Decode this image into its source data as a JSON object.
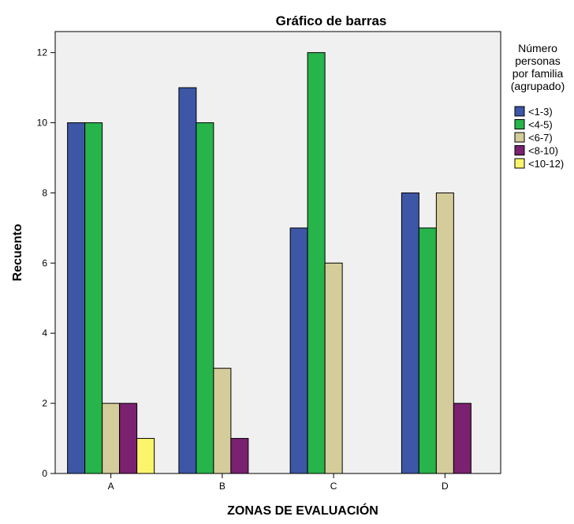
{
  "chart_data": {
    "type": "bar",
    "title": "Gráfico de barras",
    "xlabel": "ZONAS DE EVALUACIÓN",
    "ylabel": "Recuento",
    "categories": [
      "A",
      "B",
      "C",
      "D"
    ],
    "ylim": [
      0,
      12.6
    ],
    "yticks": [
      0,
      2,
      4,
      6,
      8,
      10,
      12
    ],
    "grid": false,
    "legend_position": "right",
    "legend_title": [
      "Número",
      "personas",
      "por familia",
      "(agrupado)"
    ],
    "series": [
      {
        "name": "<1-3)",
        "color": "#3d56a6",
        "values": [
          10,
          11,
          7,
          8
        ]
      },
      {
        "name": "<4-5)",
        "color": "#27b44a",
        "values": [
          10,
          10,
          12,
          7
        ]
      },
      {
        "name": "<6-7)",
        "color": "#d4cc9a",
        "values": [
          2,
          3,
          6,
          8
        ]
      },
      {
        "name": "<8-10)",
        "color": "#7a2170",
        "values": [
          2,
          1,
          0,
          2
        ]
      },
      {
        "name": "<10-12)",
        "color": "#fbf46c",
        "values": [
          1,
          0,
          0,
          0
        ]
      }
    ]
  }
}
